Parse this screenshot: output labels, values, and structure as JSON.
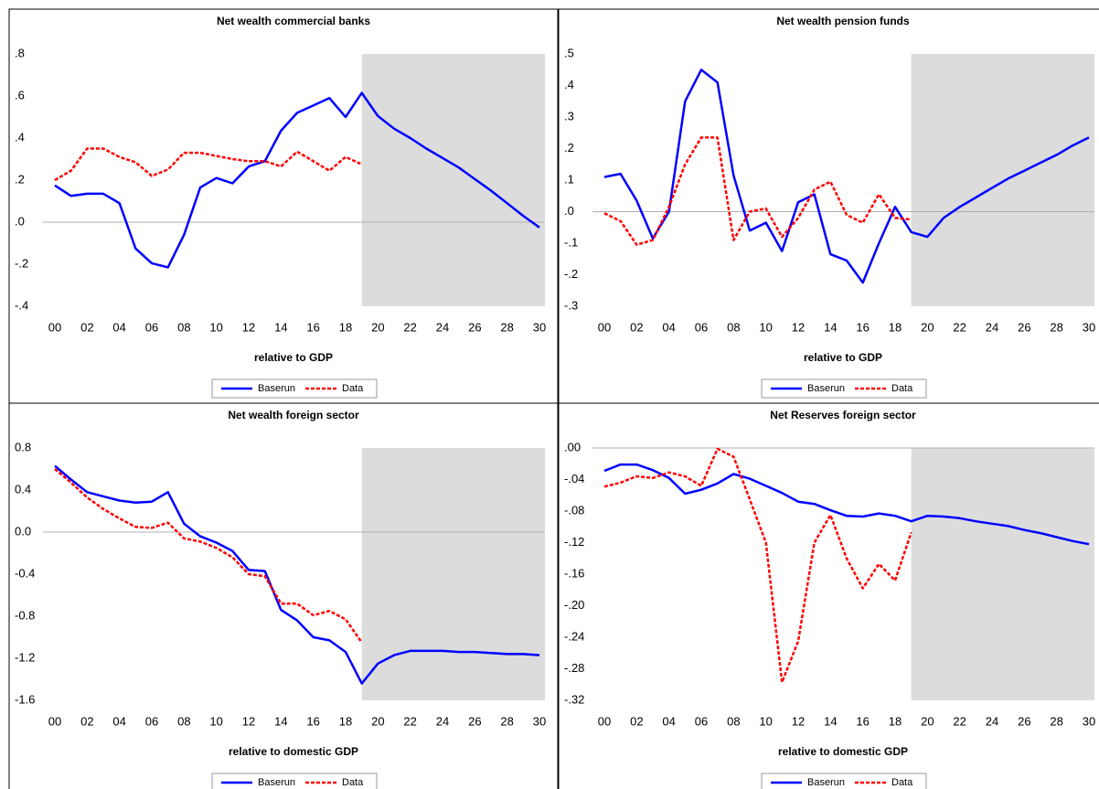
{
  "chart_data": [
    {
      "type": "line",
      "title": "Net wealth commercial banks",
      "x_label": "relative to GDP",
      "categories": [
        "00",
        null,
        "02",
        null,
        "04",
        null,
        "06",
        null,
        "08",
        null,
        "10",
        null,
        "12",
        null,
        "14",
        null,
        "16",
        null,
        "18",
        null,
        "20",
        null,
        "22",
        null,
        "24",
        null,
        "26",
        null,
        "28",
        null,
        "30"
      ],
      "series": [
        {
          "name": "Baserun",
          "color": "#0000ff",
          "dashed": false,
          "values": [
            0.175,
            0.125,
            0.135,
            0.135,
            0.09,
            -0.125,
            -0.195,
            -0.215,
            -0.06,
            0.165,
            0.21,
            0.185,
            0.265,
            0.29,
            0.435,
            0.52,
            0.555,
            0.59,
            0.5,
            0.615,
            0.505,
            0.445,
            0.4,
            0.35,
            0.305,
            0.26,
            0.205,
            0.15,
            0.09,
            0.03,
            -0.025
          ]
        },
        {
          "name": "Data",
          "color": "#ff0000",
          "dashed": true,
          "values": [
            0.2,
            0.245,
            0.35,
            0.35,
            0.31,
            0.285,
            0.22,
            0.25,
            0.33,
            0.33,
            0.315,
            0.3,
            0.29,
            0.29,
            0.265,
            0.335,
            0.29,
            0.245,
            0.31,
            0.275,
            null,
            null,
            null,
            null,
            null,
            null,
            null,
            null,
            null,
            null,
            null
          ]
        }
      ],
      "ylim": [
        -0.4,
        0.8
      ],
      "yticks": [
        {
          "value": -0.4,
          "label": "-.4"
        },
        {
          "value": -0.2,
          "label": "-.2"
        },
        {
          "value": 0,
          "label": ".0"
        },
        {
          "value": 0.2,
          "label": ".2"
        },
        {
          "value": 0.4,
          "label": ".4"
        },
        {
          "value": 0.6,
          "label": ".6"
        },
        {
          "value": 0.8,
          "label": ".8"
        }
      ],
      "forecast_shade": [
        19,
        30
      ]
    },
    {
      "type": "line",
      "title": "Net wealth pension funds",
      "x_label": "relative to GDP",
      "categories": [
        "00",
        null,
        "02",
        null,
        "04",
        null,
        "06",
        null,
        "08",
        null,
        "10",
        null,
        "12",
        null,
        "14",
        null,
        "16",
        null,
        "18",
        null,
        "20",
        null,
        "22",
        null,
        "24",
        null,
        "26",
        null,
        "28",
        null,
        "30"
      ],
      "series": [
        {
          "name": "Baserun",
          "color": "#0000ff",
          "dashed": false,
          "values": [
            0.11,
            0.12,
            0.035,
            -0.085,
            0.0,
            0.35,
            0.45,
            0.41,
            0.115,
            -0.06,
            -0.035,
            -0.125,
            0.03,
            0.055,
            -0.135,
            -0.155,
            -0.225,
            -0.1,
            0.015,
            -0.065,
            -0.08,
            -0.02,
            0.015,
            0.045,
            0.075,
            0.105,
            0.13,
            0.155,
            0.18,
            0.21,
            0.235
          ]
        },
        {
          "name": "Data",
          "color": "#ff0000",
          "dashed": true,
          "values": [
            -0.005,
            -0.03,
            -0.105,
            -0.09,
            0.015,
            0.15,
            0.235,
            0.235,
            -0.09,
            0.0,
            0.01,
            -0.08,
            -0.02,
            0.07,
            0.095,
            -0.01,
            -0.035,
            0.055,
            -0.02,
            -0.025,
            null,
            null,
            null,
            null,
            null,
            null,
            null,
            null,
            null,
            null,
            null
          ]
        }
      ],
      "ylim": [
        -0.3,
        0.5
      ],
      "yticks": [
        {
          "value": -0.3,
          "label": "-.3"
        },
        {
          "value": -0.2,
          "label": "-.2"
        },
        {
          "value": -0.1,
          "label": "-.1"
        },
        {
          "value": 0,
          "label": ".0"
        },
        {
          "value": 0.1,
          "label": ".1"
        },
        {
          "value": 0.2,
          "label": ".2"
        },
        {
          "value": 0.3,
          "label": ".3"
        },
        {
          "value": 0.4,
          "label": ".4"
        },
        {
          "value": 0.5,
          "label": ".5"
        }
      ],
      "forecast_shade": [
        19,
        30
      ]
    },
    {
      "type": "line",
      "title": "Net wealth foreign sector",
      "x_label": "relative to domestic GDP",
      "categories": [
        "00",
        null,
        "02",
        null,
        "04",
        null,
        "06",
        null,
        "08",
        null,
        "10",
        null,
        "12",
        null,
        "14",
        null,
        "16",
        null,
        "18",
        null,
        "20",
        null,
        "22",
        null,
        "24",
        null,
        "26",
        null,
        "28",
        null,
        "30"
      ],
      "series": [
        {
          "name": "Baserun",
          "color": "#0000ff",
          "dashed": false,
          "values": [
            0.63,
            0.5,
            0.38,
            0.34,
            0.3,
            0.28,
            0.29,
            0.38,
            0.08,
            -0.04,
            -0.1,
            -0.18,
            -0.36,
            -0.37,
            -0.74,
            -0.84,
            -1.0,
            -1.03,
            -1.14,
            -1.44,
            -1.25,
            -1.17,
            -1.13,
            -1.13,
            -1.13,
            -1.14,
            -1.14,
            -1.15,
            -1.16,
            -1.16,
            -1.17
          ]
        },
        {
          "name": "Data",
          "color": "#ff0000",
          "dashed": true,
          "values": [
            0.6,
            0.47,
            0.33,
            0.22,
            0.13,
            0.05,
            0.04,
            0.09,
            -0.06,
            -0.09,
            -0.15,
            -0.24,
            -0.4,
            -0.42,
            -0.68,
            -0.68,
            -0.79,
            -0.75,
            -0.83,
            -1.05,
            null,
            null,
            null,
            null,
            null,
            null,
            null,
            null,
            null,
            null,
            null
          ]
        }
      ],
      "ylim": [
        -1.6,
        0.8
      ],
      "yticks": [
        -1.6,
        -1.2,
        -0.8,
        -0.4,
        {
          "value": 0,
          "label": "0.0"
        },
        0.4,
        0.8
      ],
      "forecast_shade": [
        19,
        30
      ]
    },
    {
      "type": "line",
      "title": "Net Reserves foreign sector",
      "x_label": "relative to domestic GDP",
      "categories": [
        "00",
        null,
        "02",
        null,
        "04",
        null,
        "06",
        null,
        "08",
        null,
        "10",
        null,
        "12",
        null,
        "14",
        null,
        "16",
        null,
        "18",
        null,
        "20",
        null,
        "22",
        null,
        "24",
        null,
        "26",
        null,
        "28",
        null,
        "30"
      ],
      "series": [
        {
          "name": "Baserun",
          "color": "#0000ff",
          "dashed": false,
          "values": [
            -0.029,
            -0.021,
            -0.021,
            -0.028,
            -0.038,
            -0.058,
            -0.053,
            -0.045,
            -0.033,
            -0.039,
            -0.048,
            -0.057,
            -0.068,
            -0.071,
            -0.079,
            -0.086,
            -0.087,
            -0.083,
            -0.086,
            -0.093,
            -0.086,
            -0.087,
            -0.089,
            -0.093,
            -0.096,
            -0.099,
            -0.104,
            -0.108,
            -0.113,
            -0.118,
            -0.122
          ]
        },
        {
          "name": "Data",
          "color": "#ff0000",
          "dashed": true,
          "values": [
            -0.049,
            -0.044,
            -0.036,
            -0.038,
            -0.031,
            -0.036,
            -0.048,
            -0.001,
            -0.011,
            -0.065,
            -0.12,
            -0.297,
            -0.245,
            -0.12,
            -0.085,
            -0.14,
            -0.178,
            -0.147,
            -0.168,
            -0.107,
            null,
            null,
            null,
            null,
            null,
            null,
            null,
            null,
            null,
            null,
            null
          ]
        }
      ],
      "ylim": [
        -0.32,
        0.0
      ],
      "yticks": [
        {
          "value": -0.32,
          "label": "-.32"
        },
        {
          "value": -0.28,
          "label": "-.28"
        },
        {
          "value": -0.24,
          "label": "-.24"
        },
        {
          "value": -0.2,
          "label": "-.20"
        },
        {
          "value": -0.16,
          "label": "-.16"
        },
        {
          "value": -0.12,
          "label": "-.12"
        },
        {
          "value": -0.08,
          "label": "-.08"
        },
        {
          "value": -0.04,
          "label": "-.04"
        },
        {
          "value": 0,
          "label": ".00"
        }
      ],
      "forecast_shade": [
        19,
        30
      ]
    }
  ]
}
